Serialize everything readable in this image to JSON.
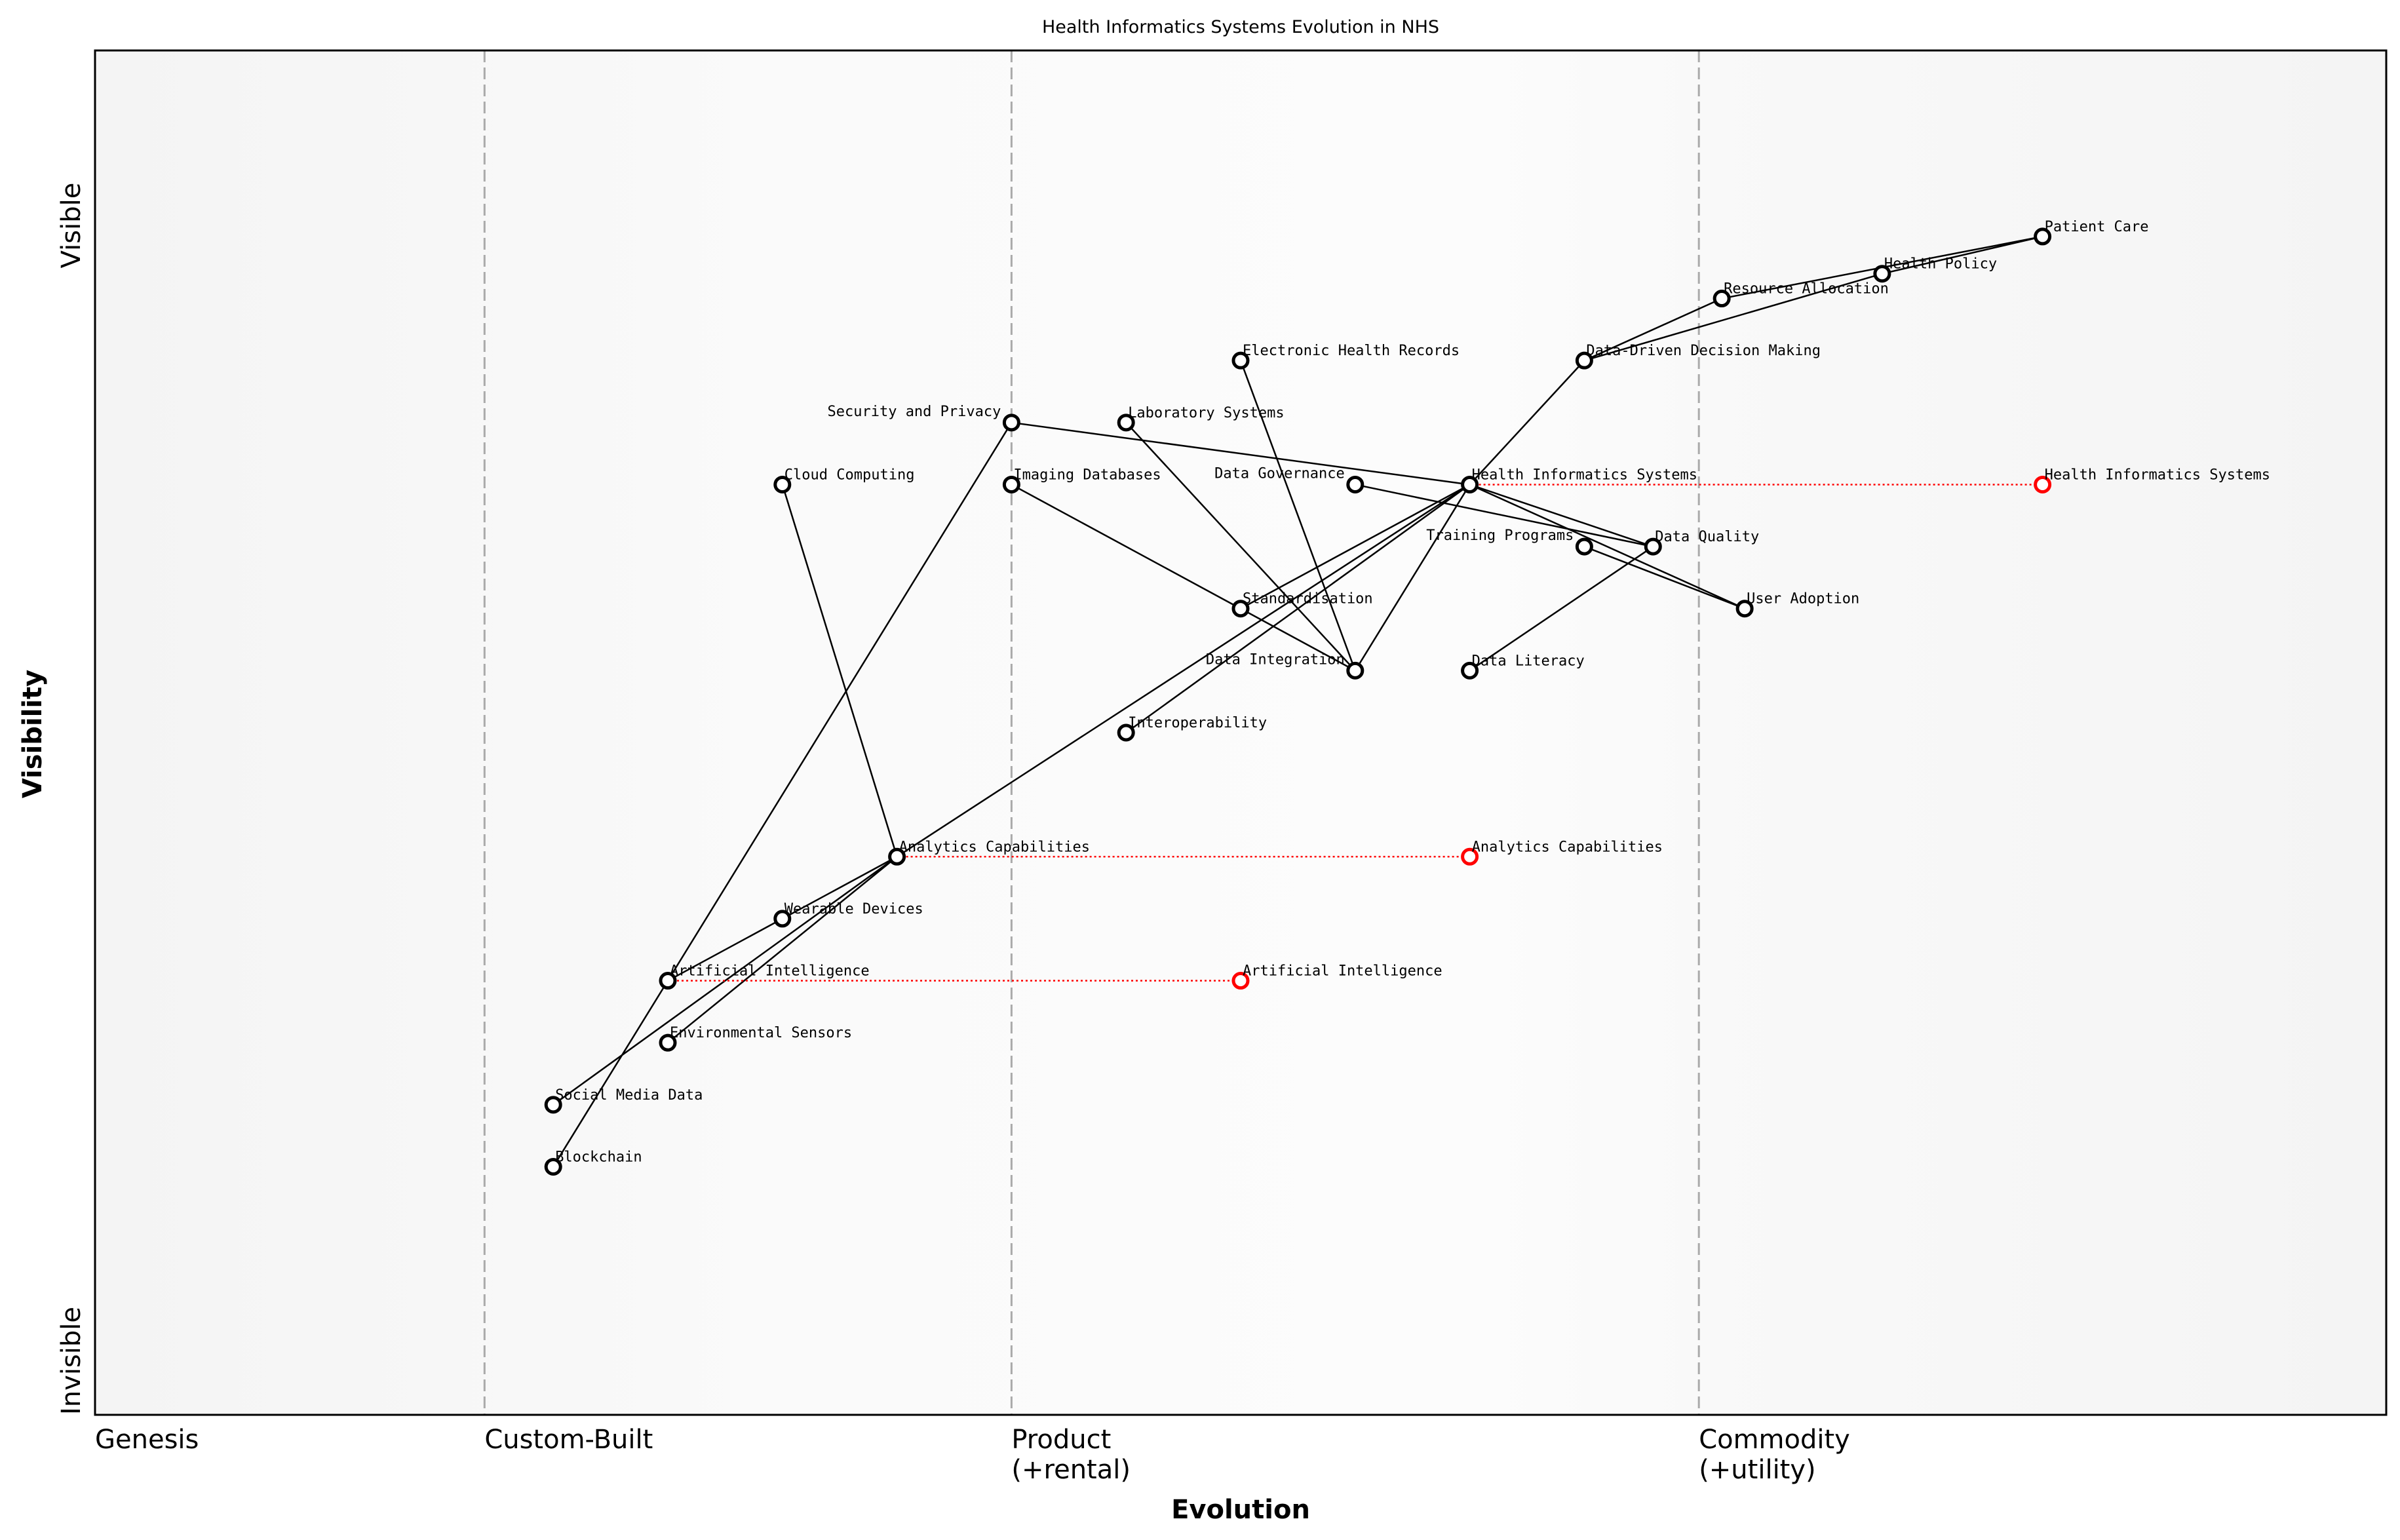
{
  "title": "Health Informatics Systems Evolution in NHS",
  "chart_data": {
    "type": "scatter",
    "subtype": "wardley-map",
    "title": "Health Informatics Systems Evolution in NHS",
    "xlabel": "Evolution",
    "ylabel": "Visibility",
    "xlim": [
      0,
      1
    ],
    "ylim": [
      0,
      1.1
    ],
    "grid": false,
    "x_stages": [
      {
        "label": [
          "Genesis"
        ],
        "x": 0
      },
      {
        "label": [
          "Custom-Built"
        ],
        "x": 0.17
      },
      {
        "label": [
          "Product",
          "(+rental)"
        ],
        "x": 0.4
      },
      {
        "label": [
          "Commodity",
          "(+utility)"
        ],
        "x": 0.7
      }
    ],
    "y_labels": {
      "top": "Visible",
      "bottom": "Invisible"
    },
    "colors": {
      "component": "#000000",
      "evolution": "#ff0000",
      "stage_line": "#aaaaaa"
    },
    "components": [
      {
        "name": "Patient Care",
        "x": 0.85,
        "y": 0.95
      },
      {
        "name": "Health Policy",
        "x": 0.78,
        "y": 0.92
      },
      {
        "name": "Resource Allocation",
        "x": 0.71,
        "y": 0.9
      },
      {
        "name": "Data-Driven Decision Making",
        "x": 0.65,
        "y": 0.85
      },
      {
        "name": "Electronic Health Records",
        "x": 0.5,
        "y": 0.85
      },
      {
        "name": "Security and Privacy",
        "x": 0.4,
        "y": 0.8
      },
      {
        "name": "Laboratory Systems",
        "x": 0.45,
        "y": 0.8
      },
      {
        "name": "Cloud Computing",
        "x": 0.3,
        "y": 0.75
      },
      {
        "name": "Imaging Databases",
        "x": 0.4,
        "y": 0.75
      },
      {
        "name": "Data Governance",
        "x": 0.55,
        "y": 0.75
      },
      {
        "name": "Health Informatics Systems",
        "x": 0.6,
        "y": 0.75
      },
      {
        "name": "Training Programs",
        "x": 0.65,
        "y": 0.7
      },
      {
        "name": "Data Quality",
        "x": 0.68,
        "y": 0.7
      },
      {
        "name": "User Adoption",
        "x": 0.72,
        "y": 0.65
      },
      {
        "name": "Standardisation",
        "x": 0.5,
        "y": 0.65
      },
      {
        "name": "Data Integration",
        "x": 0.55,
        "y": 0.6
      },
      {
        "name": "Data Literacy",
        "x": 0.6,
        "y": 0.6
      },
      {
        "name": "Interoperability",
        "x": 0.45,
        "y": 0.55
      },
      {
        "name": "Analytics Capabilities",
        "x": 0.35,
        "y": 0.45
      },
      {
        "name": "Wearable Devices",
        "x": 0.3,
        "y": 0.4
      },
      {
        "name": "Artificial Intelligence",
        "x": 0.25,
        "y": 0.35
      },
      {
        "name": "Environmental Sensors",
        "x": 0.25,
        "y": 0.3
      },
      {
        "name": "Social Media Data",
        "x": 0.2,
        "y": 0.25
      },
      {
        "name": "Blockchain",
        "x": 0.2,
        "y": 0.2
      }
    ],
    "links": [
      [
        "Patient Care",
        "Health Policy"
      ],
      [
        "Patient Care",
        "Resource Allocation"
      ],
      [
        "Health Policy",
        "Data-Driven Decision Making"
      ],
      [
        "Resource Allocation",
        "Data-Driven Decision Making"
      ],
      [
        "Data-Driven Decision Making",
        "Health Informatics Systems"
      ],
      [
        "Health Informatics Systems",
        "Security and Privacy"
      ],
      [
        "Health Informatics Systems",
        "Data Quality"
      ],
      [
        "Health Informatics Systems",
        "User Adoption"
      ],
      [
        "Health Informatics Systems",
        "Data Integration"
      ],
      [
        "Health Informatics Systems",
        "Standardisation"
      ],
      [
        "Health Informatics Systems",
        "Interoperability"
      ],
      [
        "Health Informatics Systems",
        "Analytics Capabilities"
      ],
      [
        "Data Governance",
        "Data Quality"
      ],
      [
        "Training Programs",
        "User Adoption"
      ],
      [
        "Data Literacy",
        "Data Quality"
      ],
      [
        "Electronic Health Records",
        "Data Integration"
      ],
      [
        "Laboratory Systems",
        "Data Integration"
      ],
      [
        "Imaging Databases",
        "Standardisation"
      ],
      [
        "Standardisation",
        "Data Integration"
      ],
      [
        "Cloud Computing",
        "Analytics Capabilities"
      ],
      [
        "Analytics Capabilities",
        "Wearable Devices"
      ],
      [
        "Analytics Capabilities",
        "Environmental Sensors"
      ],
      [
        "Analytics Capabilities",
        "Social Media Data"
      ],
      [
        "Wearable Devices",
        "Artificial Intelligence"
      ],
      [
        "Security and Privacy",
        "Blockchain"
      ]
    ],
    "evolutions": [
      {
        "name": "Health Informatics Systems",
        "from_x": 0.6,
        "to_x": 0.85,
        "y": 0.75
      },
      {
        "name": "Analytics Capabilities",
        "from_x": 0.35,
        "to_x": 0.6,
        "y": 0.45
      },
      {
        "name": "Artificial Intelligence",
        "from_x": 0.25,
        "to_x": 0.5,
        "y": 0.35
      }
    ]
  }
}
